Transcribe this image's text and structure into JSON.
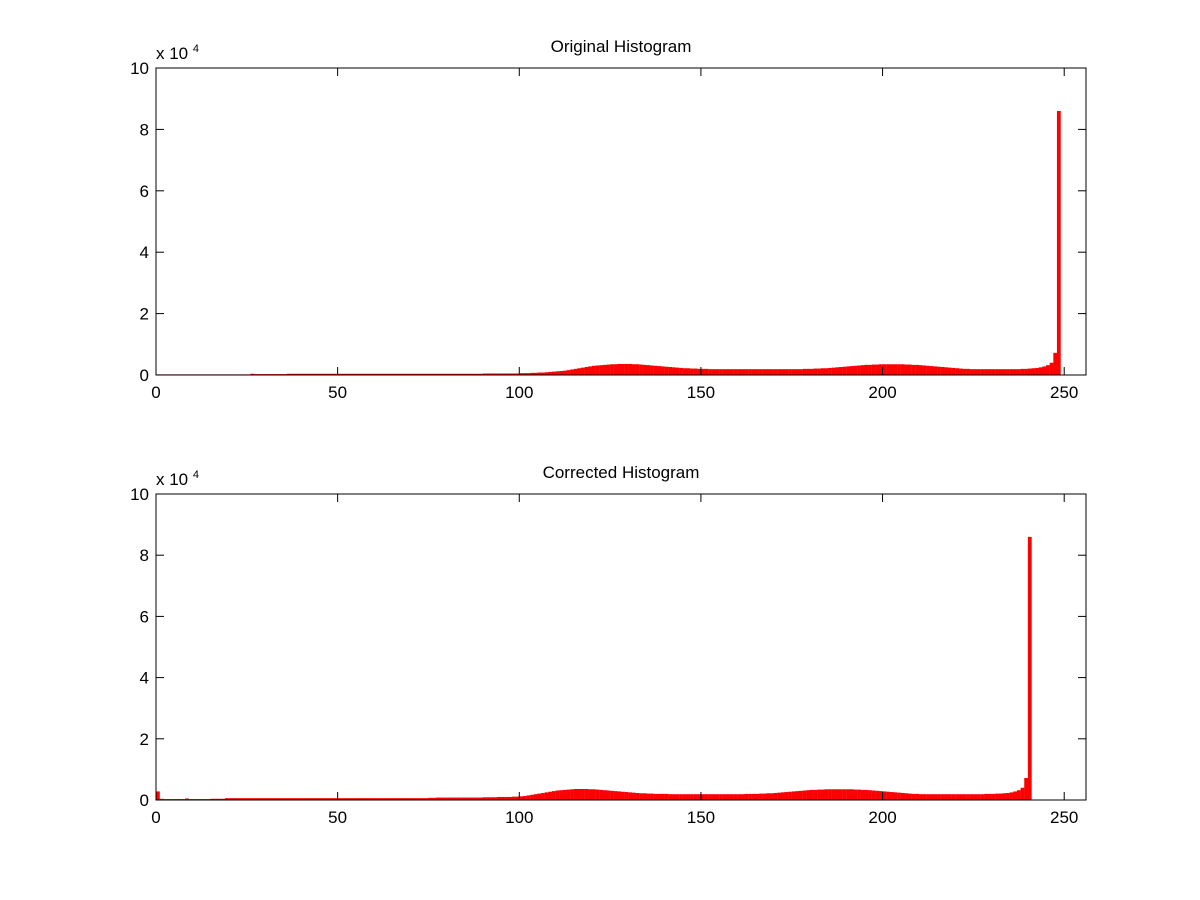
{
  "chart_data": [
    {
      "type": "bar",
      "title": "Original Histogram",
      "xlabel": "",
      "ylabel": "",
      "xlim": [
        0,
        255
      ],
      "ylim": [
        0,
        100000
      ],
      "y_exponent_label": "x 10",
      "y_exponent": "4",
      "x_ticks": [
        0,
        50,
        100,
        150,
        200,
        250
      ],
      "x_tick_labels": [
        "0",
        "50",
        "100",
        "150",
        "200",
        "250"
      ],
      "y_ticks": [
        0,
        20000,
        40000,
        60000,
        80000,
        100000
      ],
      "y_tick_labels": [
        "0",
        "2",
        "4",
        "6",
        "8",
        "10"
      ],
      "bar_color": "#ff0000",
      "grid": false,
      "series": [
        {
          "x_start": 0,
          "bin_width": 1,
          "values": [
            200,
            200,
            200,
            200,
            200,
            200,
            200,
            200,
            200,
            200,
            200,
            200,
            200,
            200,
            200,
            200,
            200,
            200,
            200,
            200,
            200,
            200,
            200,
            200,
            200,
            200,
            400,
            300,
            300,
            300,
            300,
            300,
            300,
            300,
            300,
            300,
            400,
            400,
            400,
            400,
            400,
            400,
            400,
            400,
            400,
            400,
            400,
            400,
            400,
            400,
            400,
            400,
            400,
            400,
            400,
            400,
            400,
            400,
            400,
            400,
            400,
            400,
            400,
            400,
            400,
            400,
            400,
            400,
            400,
            400,
            400,
            400,
            400,
            400,
            400,
            400,
            400,
            400,
            400,
            400,
            400,
            400,
            400,
            400,
            400,
            400,
            400,
            400,
            400,
            400,
            500,
            500,
            500,
            500,
            500,
            500,
            500,
            500,
            500,
            500,
            600,
            600,
            600,
            700,
            700,
            800,
            800,
            900,
            1000,
            1100,
            1200,
            1300,
            1400,
            1600,
            1800,
            2000,
            2200,
            2400,
            2600,
            2800,
            3000,
            3100,
            3200,
            3300,
            3400,
            3500,
            3500,
            3600,
            3600,
            3600,
            3600,
            3500,
            3500,
            3400,
            3300,
            3200,
            3100,
            3000,
            2900,
            2800,
            2700,
            2600,
            2500,
            2400,
            2300,
            2200,
            2200,
            2100,
            2100,
            2000,
            2000,
            2000,
            1900,
            1900,
            1900,
            1900,
            1900,
            1900,
            1900,
            1900,
            1900,
            1900,
            1900,
            1900,
            1900,
            1900,
            1900,
            1900,
            1900,
            1900,
            1900,
            1900,
            1900,
            1900,
            1900,
            1900,
            1900,
            1900,
            2000,
            2000,
            2000,
            2100,
            2100,
            2200,
            2200,
            2300,
            2400,
            2500,
            2600,
            2700,
            2800,
            2900,
            3000,
            3100,
            3200,
            3300,
            3300,
            3400,
            3400,
            3500,
            3500,
            3500,
            3500,
            3500,
            3500,
            3500,
            3400,
            3400,
            3300,
            3300,
            3200,
            3100,
            3000,
            2900,
            2800,
            2700,
            2600,
            2500,
            2400,
            2300,
            2200,
            2100,
            2000,
            2000,
            1900,
            1900,
            1900,
            1900,
            1900,
            1900,
            1900,
            1900,
            1900,
            1900,
            1900,
            1900,
            1900,
            1900,
            2000,
            2000,
            2100,
            2200,
            2300,
            2500,
            2800,
            3200,
            4000,
            7200,
            86000
          ]
        }
      ]
    },
    {
      "type": "bar",
      "title": "Corrected Histogram",
      "xlabel": "",
      "ylabel": "",
      "xlim": [
        0,
        255
      ],
      "ylim": [
        0,
        100000
      ],
      "y_exponent_label": "x 10",
      "y_exponent": "4",
      "x_ticks": [
        0,
        50,
        100,
        150,
        200,
        250
      ],
      "x_tick_labels": [
        "0",
        "50",
        "100",
        "150",
        "200",
        "250"
      ],
      "y_ticks": [
        0,
        20000,
        40000,
        60000,
        80000,
        100000
      ],
      "y_tick_labels": [
        "0",
        "2",
        "4",
        "6",
        "8",
        "10"
      ],
      "bar_color": "#ff0000",
      "grid": false,
      "series": [
        {
          "x_start": 0,
          "bin_width": 1,
          "values": [
            2800,
            400,
            300,
            300,
            300,
            300,
            300,
            300,
            500,
            300,
            300,
            300,
            300,
            300,
            300,
            400,
            400,
            400,
            400,
            600,
            600,
            600,
            600,
            600,
            600,
            600,
            600,
            600,
            600,
            600,
            600,
            600,
            600,
            600,
            600,
            600,
            600,
            600,
            600,
            600,
            600,
            600,
            600,
            600,
            600,
            600,
            600,
            600,
            600,
            600,
            600,
            600,
            600,
            600,
            600,
            600,
            600,
            600,
            600,
            600,
            600,
            600,
            600,
            600,
            600,
            600,
            600,
            600,
            600,
            600,
            600,
            600,
            600,
            600,
            600,
            700,
            700,
            800,
            800,
            800,
            800,
            800,
            800,
            800,
            800,
            800,
            800,
            800,
            800,
            800,
            900,
            900,
            900,
            900,
            1000,
            1000,
            1000,
            1000,
            1100,
            1100,
            1200,
            1300,
            1500,
            1700,
            1900,
            2100,
            2300,
            2500,
            2700,
            2900,
            3100,
            3200,
            3300,
            3400,
            3500,
            3600,
            3600,
            3600,
            3600,
            3500,
            3500,
            3400,
            3300,
            3200,
            3100,
            3000,
            2900,
            2800,
            2700,
            2600,
            2500,
            2400,
            2300,
            2200,
            2200,
            2100,
            2100,
            2000,
            2000,
            2000,
            2000,
            1900,
            1900,
            1900,
            1900,
            1900,
            1900,
            1900,
            1900,
            1900,
            1900,
            1900,
            1900,
            1900,
            1900,
            1900,
            1900,
            1900,
            1900,
            1900,
            1900,
            1900,
            2000,
            2000,
            2000,
            2000,
            2100,
            2100,
            2200,
            2200,
            2300,
            2400,
            2500,
            2600,
            2700,
            2800,
            2900,
            3000,
            3100,
            3200,
            3300,
            3300,
            3400,
            3400,
            3500,
            3500,
            3500,
            3500,
            3500,
            3500,
            3500,
            3500,
            3400,
            3400,
            3300,
            3300,
            3200,
            3100,
            3000,
            2900,
            2800,
            2700,
            2600,
            2500,
            2400,
            2300,
            2200,
            2100,
            2000,
            2000,
            1900,
            1900,
            1900,
            1900,
            1900,
            1900,
            1900,
            1900,
            1900,
            1900,
            1900,
            1900,
            1900,
            1900,
            1900,
            1900,
            1900,
            1900,
            2000,
            2000,
            2000,
            2100,
            2100,
            2200,
            2300,
            2500,
            2800,
            3200,
            4000,
            7200,
            86000
          ]
        }
      ]
    }
  ]
}
